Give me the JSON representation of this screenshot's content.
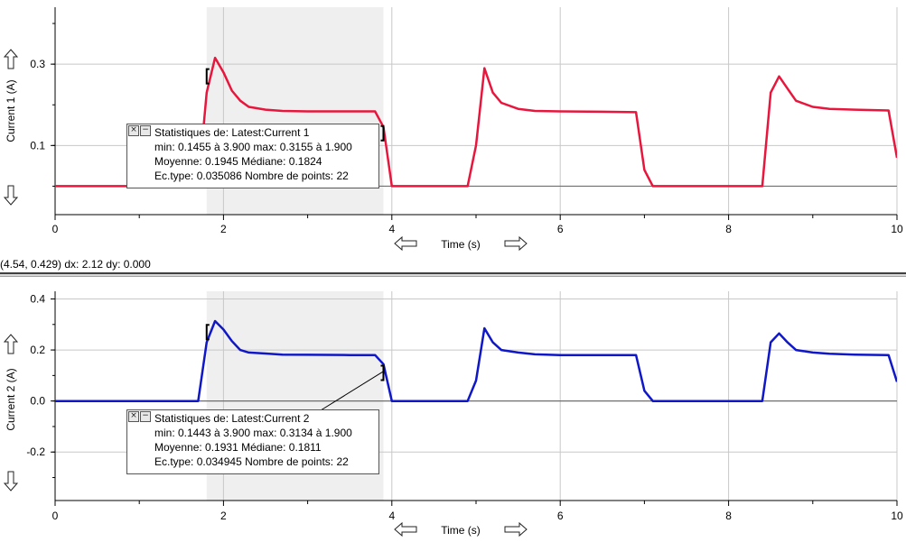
{
  "status_readout": "(4.54, 0.429) dx: 2.12 dy: 0.000",
  "icons": {
    "y_zoom_up": "up-arrow-icon",
    "y_zoom_down": "down-arrow-icon",
    "x_scroll_left": "left-arrow-icon",
    "x_scroll_right": "right-arrow-icon",
    "close": "close-icon",
    "minimize": "minimize-icon"
  },
  "stats_controls": {
    "close": "×",
    "minimize": "−"
  },
  "chart_data": [
    {
      "type": "line",
      "title": "",
      "xlabel": "Time (s)",
      "ylabel": "Current 1 (A)",
      "xlim": [
        0,
        10
      ],
      "ylim": [
        -0.07,
        0.44
      ],
      "xticks": [
        0,
        2,
        4,
        6,
        8,
        10
      ],
      "xtick_labels": [
        "0",
        "2",
        "4",
        "6",
        "8",
        "10"
      ],
      "yticks": [
        0.1,
        0.3
      ],
      "ytick_labels": [
        "0.1",
        "0.3"
      ],
      "grid": true,
      "color": "#e8163c",
      "selection": [
        1.8,
        3.9
      ],
      "selection_markers": [
        [
          1.8,
          0.27
        ],
        [
          3.9,
          0.13
        ]
      ],
      "series": [
        {
          "x": [
            0,
            1.7,
            1.8,
            1.9,
            2.0,
            2.1,
            2.2,
            2.3,
            2.5,
            2.7,
            3.0,
            3.5,
            3.8,
            3.9,
            4.0,
            4.9,
            5.0,
            5.1,
            5.2,
            5.3,
            5.5,
            5.7,
            6.0,
            6.5,
            6.9,
            7.0,
            7.1,
            8.4,
            8.5,
            8.6,
            8.7,
            8.8,
            9.0,
            9.2,
            9.5,
            9.9,
            10.0
          ],
          "y": [
            0.0,
            0.0,
            0.23,
            0.3155,
            0.28,
            0.235,
            0.21,
            0.195,
            0.188,
            0.185,
            0.184,
            0.184,
            0.184,
            0.1455,
            0.0,
            0.0,
            0.1,
            0.29,
            0.23,
            0.205,
            0.19,
            0.185,
            0.184,
            0.183,
            0.182,
            0.04,
            0.0,
            0.0,
            0.23,
            0.27,
            0.24,
            0.21,
            0.195,
            0.19,
            0.188,
            0.186,
            0.07
          ]
        }
      ],
      "stats": {
        "title": "Statistiques de: Latest:Current 1",
        "line1": "min: 0.1455 à 3.900 max: 0.3155 à 1.900",
        "line2": "Moyenne: 0.1945 Médiane: 0.1824",
        "line3": "Ec.type: 0.035086 Nombre de points: 22"
      }
    },
    {
      "type": "line",
      "title": "",
      "xlabel": "Time (s)",
      "ylabel": "Current 2 (A)",
      "xlim": [
        0,
        10
      ],
      "ylim": [
        -0.39,
        0.43
      ],
      "xticks": [
        0,
        2,
        4,
        6,
        8,
        10
      ],
      "xtick_labels": [
        "0",
        "2",
        "4",
        "6",
        "8",
        "10"
      ],
      "yticks": [
        -0.2,
        0.0,
        0.2,
        0.4
      ],
      "ytick_labels": [
        "-0.2",
        "0.0",
        "0.2",
        "0.4"
      ],
      "grid": true,
      "color": "#0f17c8",
      "selection": [
        1.8,
        3.9
      ],
      "selection_markers": [
        [
          1.8,
          0.27
        ],
        [
          3.9,
          0.11
        ]
      ],
      "series": [
        {
          "x": [
            0,
            1.7,
            1.8,
            1.9,
            2.0,
            2.1,
            2.2,
            2.3,
            2.5,
            2.7,
            3.0,
            3.5,
            3.8,
            3.9,
            4.0,
            4.9,
            5.0,
            5.1,
            5.2,
            5.3,
            5.5,
            5.7,
            6.0,
            6.5,
            6.9,
            7.0,
            7.1,
            8.4,
            8.5,
            8.6,
            8.7,
            8.8,
            9.0,
            9.2,
            9.5,
            9.9,
            10.0
          ],
          "y": [
            0.0,
            0.0,
            0.23,
            0.3134,
            0.28,
            0.235,
            0.2,
            0.19,
            0.186,
            0.182,
            0.181,
            0.18,
            0.18,
            0.1443,
            0.0,
            0.0,
            0.08,
            0.285,
            0.23,
            0.2,
            0.19,
            0.183,
            0.18,
            0.18,
            0.18,
            0.04,
            0.0,
            0.0,
            0.23,
            0.265,
            0.23,
            0.2,
            0.19,
            0.185,
            0.182,
            0.18,
            0.075
          ]
        }
      ],
      "stats": {
        "title": "Statistiques de: Latest:Current 2",
        "line1": "min: 0.1443 à 3.900 max: 0.3134 à 1.900",
        "line2": "Moyenne: 0.1931 Médiane: 0.1811",
        "line3": "Ec.type: 0.034945 Nombre de points: 22"
      }
    }
  ]
}
